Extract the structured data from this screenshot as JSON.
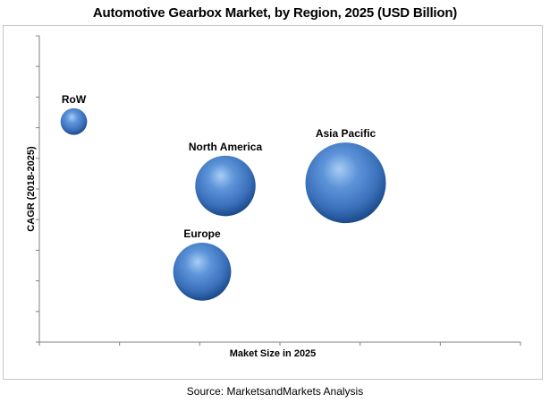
{
  "chart_data": {
    "type": "scatter",
    "title": "Automotive Gearbox Market, by Region, 2025 (USD Billion)",
    "xlabel": "Maket Size in 2025",
    "ylabel": "CAGR (2018-2025)",
    "xlim": [
      0,
      60
    ],
    "ylim": [
      0,
      10
    ],
    "grid": false,
    "legend": "none",
    "points": [
      {
        "label": "RoW",
        "x": 4.3,
        "y": 7.2,
        "size": 0.33
      },
      {
        "label": "North America",
        "x": 23.2,
        "y": 5.1,
        "size": 0.75
      },
      {
        "label": "Europe",
        "x": 20.3,
        "y": 2.3,
        "size": 0.72
      },
      {
        "label": "Asia Pacific",
        "x": 38.2,
        "y": 5.2,
        "size": 1.0
      }
    ]
  },
  "source": "Source: MarketsandMarkets Analysis",
  "colors": {
    "bubble_fill": "#3f79c4",
    "bubble_highlight": "#9cc5f2",
    "bubble_shadow": "#1c4a8a",
    "axis": "#808080",
    "frame_border": "#c8c8c8"
  }
}
